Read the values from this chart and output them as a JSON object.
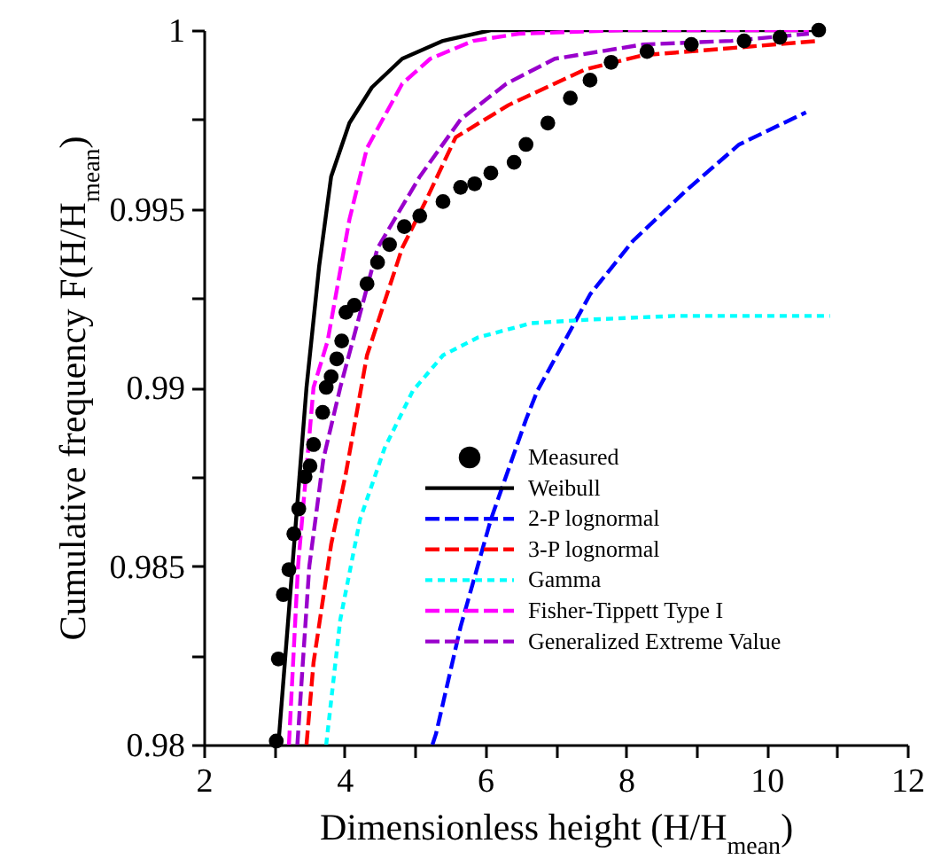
{
  "chart_data": {
    "type": "line",
    "xlabel": "Dimensionless height  (H/H$_{mean}$)",
    "ylabel": "Cumulative frequency  F(H/H$_{mean}$)",
    "xlim": [
      2,
      12
    ],
    "xticks": [
      2,
      {
        "value": 3,
        "label": null
      },
      4,
      {
        "value": 5,
        "label": null
      },
      6,
      {
        "value": 7,
        "label": null
      },
      8,
      {
        "value": 9,
        "label": null
      },
      10,
      {
        "value": 11,
        "label": null
      },
      12
    ],
    "ylim": [
      0.98,
      1
    ],
    "yticks": [
      0.98,
      {
        "value": 0.9825,
        "label": null
      },
      0.985,
      {
        "value": 0.9875,
        "label": null
      },
      0.99,
      {
        "value": 0.9925,
        "label": null
      },
      0.995,
      {
        "value": 0.9975,
        "label": null
      },
      1
    ],
    "grid": false,
    "legend": "bottom right",
    "series": [
      {
        "name": "Measured",
        "type": "scatter",
        "marker": "circle",
        "color": "#000000",
        "x": [
          3.03,
          3.06,
          3.13,
          3.21,
          3.28,
          3.35,
          3.44,
          3.51,
          3.56,
          3.69,
          3.74,
          3.81,
          3.89,
          3.96,
          4.02,
          4.14,
          4.32,
          4.47,
          4.64,
          4.85,
          5.07,
          5.4,
          5.65,
          5.85,
          6.08,
          6.41,
          6.58,
          6.89,
          7.21,
          7.49,
          7.79,
          8.3,
          8.93,
          9.68,
          10.19,
          10.74
        ],
        "values": [
          0.9801,
          0.9824,
          0.9842,
          0.9849,
          0.9859,
          0.9866,
          0.9875,
          0.9878,
          0.9884,
          0.9893,
          0.99,
          0.9903,
          0.9908,
          0.9913,
          0.9921,
          0.9923,
          0.9929,
          0.9935,
          0.994,
          0.9945,
          0.9948,
          0.9952,
          0.9956,
          0.9957,
          0.996,
          0.9963,
          0.9968,
          0.9974,
          0.9981,
          0.9986,
          0.9991,
          0.9994,
          0.9996,
          0.9997,
          0.9998,
          1.0
        ]
      },
      {
        "name": "Weibull",
        "type": "line",
        "line_style": "solid",
        "color": "#000000",
        "x": [
          3.06,
          3.26,
          3.46,
          3.64,
          3.81,
          4.07,
          4.39,
          4.82,
          5.4,
          6.08,
          8,
          10.7
        ],
        "values": [
          0.98,
          0.985,
          0.99,
          0.9934,
          0.9959,
          0.9974,
          0.9984,
          0.9992,
          0.9997,
          1.0,
          1.0,
          1.0
        ]
      },
      {
        "name": "2-P lognormal",
        "type": "line",
        "line_style": "dashed",
        "color": "#0000ff",
        "x": [
          5.25,
          5.3,
          5.65,
          6.08,
          6.58,
          6.74,
          7.49,
          8.1,
          8.85,
          9.61,
          10.56
        ],
        "values": [
          0.98,
          0.9803,
          0.9833,
          0.9863,
          0.9891,
          0.9899,
          0.9926,
          0.9941,
          0.9955,
          0.9968,
          0.9977
        ]
      },
      {
        "name": "3-P lognormal",
        "type": "line",
        "line_style": "dashed",
        "color": "#ff0000",
        "x": [
          3.46,
          3.56,
          3.81,
          4.02,
          4.32,
          4.47,
          4.82,
          5.15,
          5.58,
          6.33,
          7.42,
          8.25,
          9.51,
          10.74
        ],
        "values": [
          0.98,
          0.9823,
          0.9856,
          0.9876,
          0.9909,
          0.9918,
          0.9939,
          0.9952,
          0.997,
          0.9979,
          0.9989,
          0.9993,
          0.9995,
          0.9997
        ]
      },
      {
        "name": "Gamma",
        "type": "line",
        "line_style": "dotted",
        "color": "#00ffff",
        "x": [
          3.74,
          3.94,
          4.22,
          4.57,
          4.97,
          5.4,
          5.9,
          6.66,
          7.5,
          8.68,
          10.9
        ],
        "values": [
          0.98,
          0.9835,
          0.9863,
          0.9883,
          0.9899,
          0.9909,
          0.9914,
          0.9918,
          0.9919,
          0.992,
          0.992
        ]
      },
      {
        "name": "Fisher-Tippett Type I",
        "type": "line",
        "line_style": "dashed",
        "color": "#ff00ff",
        "x": [
          3.21,
          3.34,
          3.56,
          3.76,
          4.07,
          4.32,
          4.82,
          5.22,
          5.83,
          6.48,
          8,
          10.6
        ],
        "values": [
          0.98,
          0.985,
          0.99,
          0.9913,
          0.9947,
          0.9967,
          0.9985,
          0.9992,
          0.9997,
          0.9999,
          1.0,
          1.0
        ]
      },
      {
        "name": "Generalized Extreme Value",
        "type": "line",
        "line_style": "dashed",
        "color": "#9900cc",
        "x": [
          3.33,
          3.5,
          3.7,
          3.94,
          4.47,
          5.07,
          5.65,
          6.3,
          6.99,
          8.25,
          9.5,
          10.6
        ],
        "values": [
          0.98,
          0.985,
          0.988,
          0.99,
          0.9939,
          0.9959,
          0.9975,
          0.9985,
          0.9992,
          0.9996,
          0.9997,
          0.9999
        ]
      }
    ]
  }
}
